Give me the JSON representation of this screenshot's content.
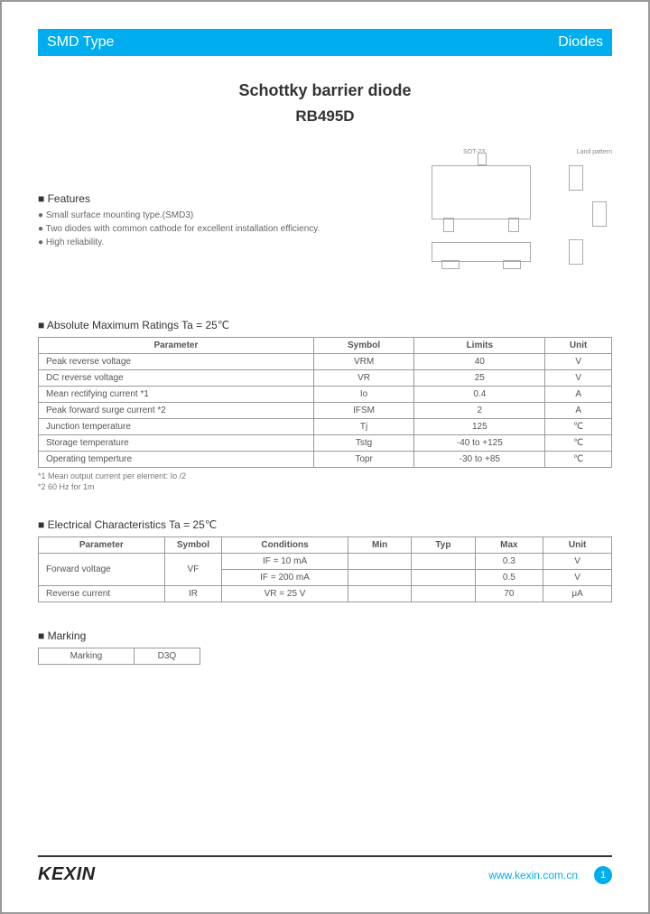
{
  "header": {
    "left": "SMD Type",
    "right": "Diodes"
  },
  "title": {
    "line1": "Schottky barrier diode",
    "line2": "RB495D"
  },
  "package": {
    "label_sot": "SOT-23",
    "label_land": "Land pattern"
  },
  "features": {
    "heading": "Features",
    "items": [
      "Small surface mounting type.(SMD3)",
      "Two diodes with common cathode for excellent installation efficiency.",
      "High reliability."
    ]
  },
  "abs_max": {
    "heading": "Absolute Maximum Ratings Ta = 25℃",
    "columns": [
      "Parameter",
      "Symbol",
      "Limits",
      "Unit"
    ],
    "rows": [
      [
        "Peak reverse voltage",
        "VRM",
        "40",
        "V"
      ],
      [
        "DC reverse voltage",
        "VR",
        "25",
        "V"
      ],
      [
        "Mean rectifying current *1",
        "Io",
        "0.4",
        "A"
      ],
      [
        "Peak forward surge current *2",
        "IFSM",
        "2",
        "A"
      ],
      [
        "Junction temperature",
        "Tj",
        "125",
        "℃"
      ],
      [
        "Storage temperature",
        "Tstg",
        "-40 to +125",
        "℃"
      ],
      [
        "Operating temperture",
        "Topr",
        "-30 to +85",
        "℃"
      ]
    ],
    "notes": [
      "*1 Mean output current per element: Io /2",
      "*2  60 Hz for 1m"
    ]
  },
  "elec": {
    "heading": "Electrical Characteristics Ta = 25℃",
    "columns": [
      "Parameter",
      "Symbol",
      "Conditions",
      "Min",
      "Typ",
      "Max",
      "Unit"
    ],
    "rows": [
      {
        "param": "Forward voltage",
        "symbol": "VF",
        "cond": "IF = 10 mA",
        "min": "",
        "typ": "",
        "max": "0.3",
        "unit": "V",
        "rowspan_first": true
      },
      {
        "param": "",
        "symbol": "",
        "cond": "IF = 200 mA",
        "min": "",
        "typ": "",
        "max": "0.5",
        "unit": "V",
        "rowspan_first": false
      },
      {
        "param": "Reverse current",
        "symbol": "IR",
        "cond": "VR = 25 V",
        "min": "",
        "typ": "",
        "max": "70",
        "unit": "μA",
        "rowspan_first": true
      }
    ]
  },
  "marking": {
    "heading": "Marking",
    "label": "Marking",
    "value": "D3Q"
  },
  "footer": {
    "brand": "KEXIN",
    "url": "www.kexin.com.cn",
    "page": "1"
  },
  "colors": {
    "brand_blue": "#00adee",
    "border": "#999999",
    "text": "#555555"
  }
}
